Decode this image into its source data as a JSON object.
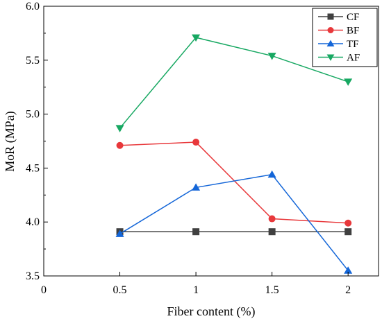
{
  "chart_data": {
    "type": "line",
    "title": "",
    "xlabel": "Fiber content (%)",
    "ylabel": "MoR (MPa)",
    "xlim": [
      0,
      2.2
    ],
    "ylim": [
      3.5,
      6.0
    ],
    "x_ticks": [
      {
        "value": 0,
        "label": "0"
      },
      {
        "value": 0.5,
        "label": "0.5"
      },
      {
        "value": 1,
        "label": "1"
      },
      {
        "value": 1.5,
        "label": "1.5"
      },
      {
        "value": 2,
        "label": "2"
      }
    ],
    "y_ticks": [
      {
        "value": 3.5,
        "label": "3.5"
      },
      {
        "value": 4.0,
        "label": "4.0"
      },
      {
        "value": 4.5,
        "label": "4.5"
      },
      {
        "value": 5.0,
        "label": "5.0"
      },
      {
        "value": 5.5,
        "label": "5.5"
      },
      {
        "value": 6.0,
        "label": "6.0"
      }
    ],
    "grid": false,
    "legend_position": "top-right",
    "x": [
      0.5,
      1,
      1.5,
      2
    ],
    "series": [
      {
        "name": "CF",
        "marker": "square",
        "color": "#404040",
        "values": [
          3.91,
          3.91,
          3.91,
          3.91
        ]
      },
      {
        "name": "BF",
        "marker": "circle",
        "color": "#e8383b",
        "values": [
          4.71,
          4.74,
          4.03,
          3.99
        ]
      },
      {
        "name": "TF",
        "marker": "triangle-up",
        "color": "#1466d8",
        "values": [
          3.89,
          4.32,
          4.44,
          3.55
        ]
      },
      {
        "name": "AF",
        "marker": "triangle-down",
        "color": "#17a862",
        "values": [
          4.87,
          5.71,
          5.54,
          5.3
        ]
      }
    ]
  }
}
